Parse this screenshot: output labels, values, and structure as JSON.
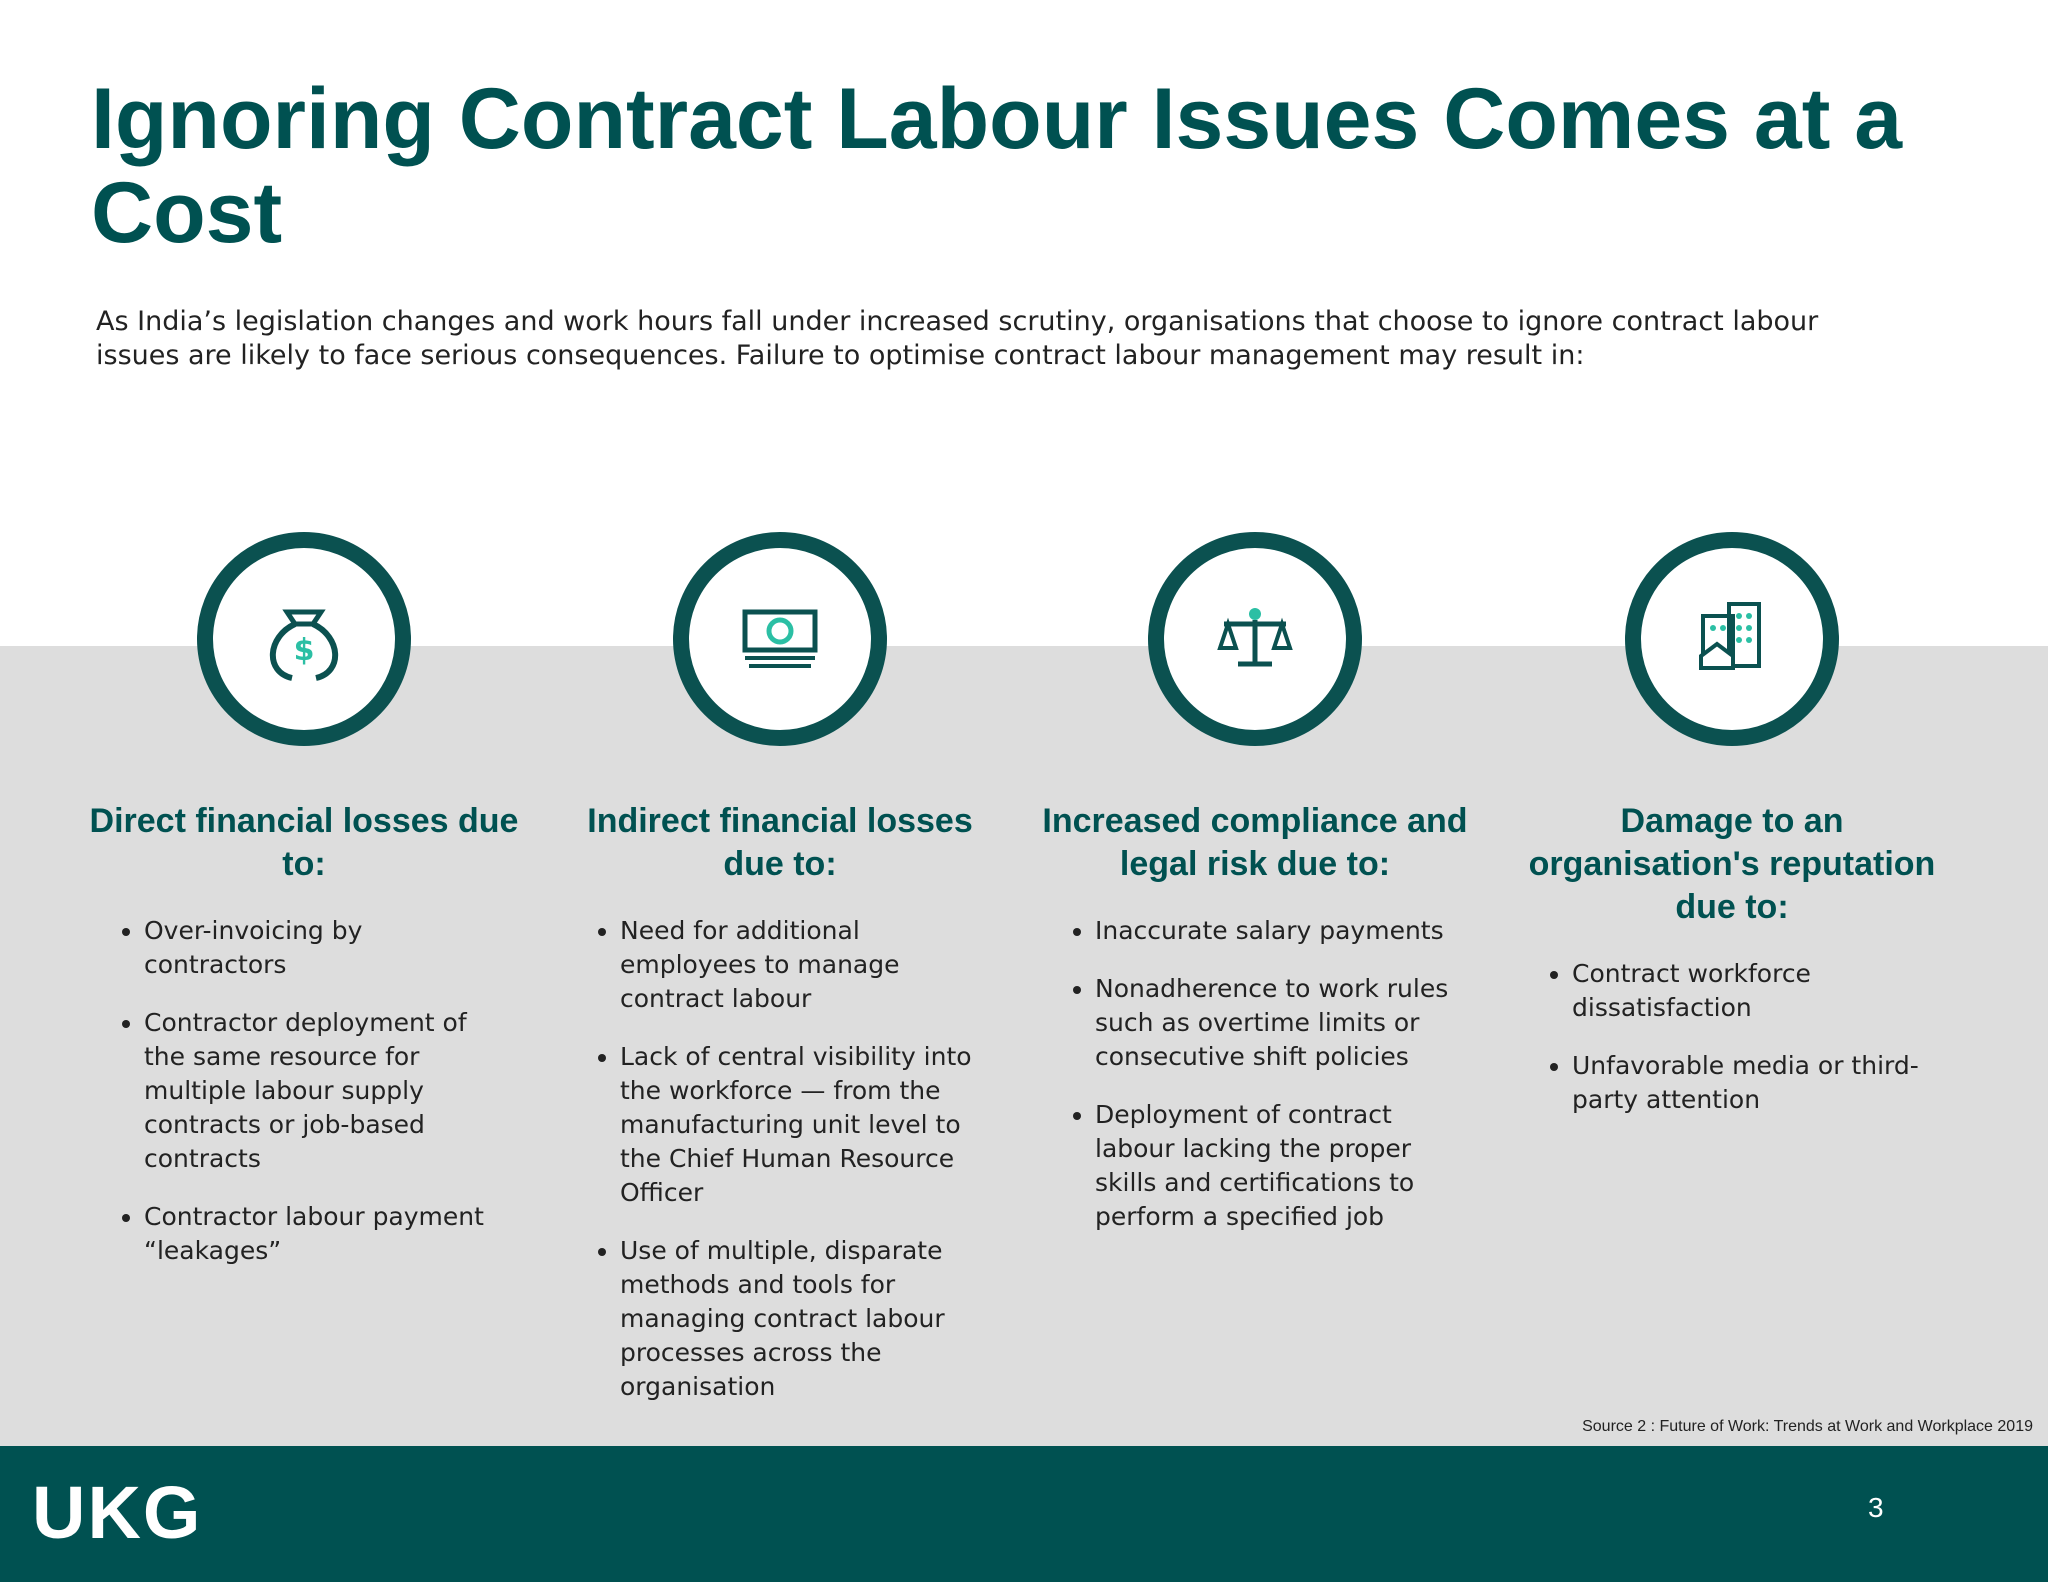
{
  "title": "Ignoring Contract Labour Issues Comes at a Cost",
  "subtitle": "As India’s legislation changes and work hours fall under increased scrutiny, organisations that choose to ignore contract labour issues are likely to face serious consequences. Failure to optimise contract labour management may result in:",
  "columns": [
    {
      "heading": "Direct financial losses due to:",
      "bullets": [
        "Over-invoicing by contractors",
        "Contractor deployment of the same resource for multiple labour supply contracts or job-based contracts",
        "Contractor labour payment “leakages”"
      ]
    },
    {
      "heading": "Indirect financial losses due to:",
      "bullets": [
        "Need for additional employees to manage contract labour",
        "Lack of central visibility into the workforce — from the manufacturing unit level to the Chief Human Resource Officer",
        "Use of multiple, disparate methods and tools for managing contract labour processes across the organisation"
      ]
    },
    {
      "heading": "Increased compliance and legal risk due to:",
      "bullets": [
        "Inaccurate salary payments",
        "Nonadherence to work rules such as overtime limits or consecutive shift policies",
        "Deployment of contract labour lacking the proper skills and certifications to perform a specified job"
      ]
    },
    {
      "heading": "Damage to an organisation's reputation due to:",
      "bullets": [
        "Contract workforce dissatisfaction",
        "Unfavorable media or third-party attention"
      ]
    }
  ],
  "source": "Source 2 : Future of Work: Trends at Work and Workplace 2019",
  "logo": "UKG",
  "page_number": "3"
}
